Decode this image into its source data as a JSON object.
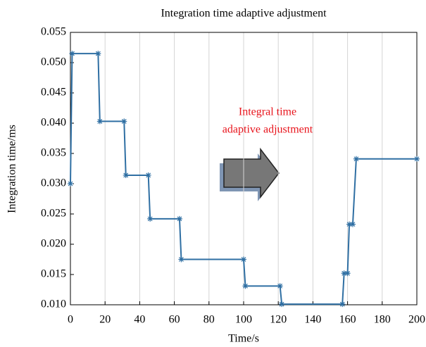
{
  "chart_data": {
    "type": "line",
    "title": "Integration time adaptive adjustment",
    "x_label": "Time/s",
    "y_label": "Integration time/ms",
    "annotation": [
      "Integral time",
      "adaptive adjustment"
    ],
    "annotation_color": "#e8141c",
    "x": [
      0,
      1,
      16,
      17,
      31,
      32,
      45,
      46,
      63,
      64,
      100,
      101,
      121,
      122,
      157,
      158,
      160,
      161,
      163,
      165,
      200
    ],
    "series": [
      {
        "color": "#2f6fa3",
        "values": [
          0.03,
          0.0515,
          0.0515,
          0.0403,
          0.0403,
          0.0314,
          0.0314,
          0.0242,
          0.0242,
          0.0175,
          0.0175,
          0.0131,
          0.0131,
          0.0101,
          0.0101,
          0.0152,
          0.0152,
          0.0233,
          0.0233,
          0.0341,
          0.0341
        ]
      }
    ],
    "xlim": [
      0,
      200
    ],
    "xticks": [
      0,
      20,
      40,
      60,
      80,
      100,
      120,
      140,
      160,
      180,
      200
    ],
    "ylim": [
      0.01,
      0.055
    ],
    "yticks": [
      {
        "value": 0.01,
        "label": "0.010"
      },
      0.015,
      {
        "value": 0.02,
        "label": "0.020"
      },
      0.025,
      {
        "value": 0.03,
        "label": "0.030"
      },
      0.035,
      {
        "value": 0.04,
        "label": "0.040"
      },
      0.045,
      {
        "value": 0.05,
        "label": "0.050"
      },
      0.055
    ],
    "grid": "x"
  }
}
